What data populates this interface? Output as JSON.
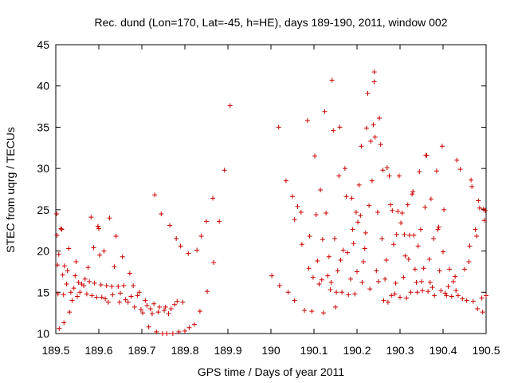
{
  "chart_data": {
    "type": "scatter",
    "title": "Rec. dund (Lon=170, Lat=-45, h=HE), days 189-190, 2011, window 002",
    "xlabel": "GPS time / Days of year 2011",
    "ylabel": "STEC from uqrg / TECUs",
    "xlim": [
      189.5,
      190.5
    ],
    "ylim": [
      10,
      45
    ],
    "xticks": [
      189.5,
      189.6,
      189.7,
      189.8,
      189.9,
      190,
      190.1,
      190.2,
      190.3,
      190.4,
      190.5
    ],
    "xtick_labels": [
      "189.5",
      "189.6",
      "189.7",
      "189.8",
      "189.9",
      "190",
      "190.1",
      "190.2",
      "190.3",
      "190.4",
      "190.5"
    ],
    "yticks": [
      10,
      15,
      20,
      25,
      30,
      35,
      40,
      45
    ],
    "ytick_labels": [
      "10",
      "15",
      "20",
      "25",
      "30",
      "35",
      "40",
      "45"
    ],
    "grid": false,
    "marker": "+",
    "color": "#cc0000",
    "series": [
      {
        "name": "STEC",
        "points": [
          [
            189.502,
            24.5
          ],
          [
            189.503,
            21.9
          ],
          [
            189.504,
            18.3
          ],
          [
            189.505,
            14.8
          ],
          [
            189.507,
            19.6
          ],
          [
            189.508,
            10.6
          ],
          [
            189.512,
            22.7
          ],
          [
            189.514,
            22.6
          ],
          [
            189.516,
            17.1
          ],
          [
            189.518,
            14.7
          ],
          [
            189.519,
            11.3
          ],
          [
            189.52,
            18.2
          ],
          [
            189.525,
            16.0
          ],
          [
            189.527,
            17.6
          ],
          [
            189.53,
            20.3
          ],
          [
            189.532,
            12.6
          ],
          [
            189.535,
            15.0
          ],
          [
            189.538,
            14.0
          ],
          [
            189.542,
            15.5
          ],
          [
            189.545,
            17.0
          ],
          [
            189.547,
            18.7
          ],
          [
            189.55,
            14.5
          ],
          [
            189.553,
            16.2
          ],
          [
            189.556,
            15.0
          ],
          [
            189.56,
            16.0
          ],
          [
            189.565,
            15.8
          ],
          [
            189.568,
            16.6
          ],
          [
            189.572,
            14.8
          ],
          [
            189.575,
            18.0
          ],
          [
            189.578,
            16.3
          ],
          [
            189.582,
            24.1
          ],
          [
            189.584,
            14.6
          ],
          [
            189.588,
            20.4
          ],
          [
            189.59,
            16.1
          ],
          [
            189.595,
            14.4
          ],
          [
            189.598,
            23.0
          ],
          [
            189.6,
            22.7
          ],
          [
            189.602,
            19.5
          ],
          [
            189.605,
            15.9
          ],
          [
            189.607,
            14.4
          ],
          [
            189.612,
            20.0
          ],
          [
            189.615,
            14.2
          ],
          [
            189.618,
            15.8
          ],
          [
            189.622,
            13.8
          ],
          [
            189.625,
            24.0
          ],
          [
            189.63,
            15.7
          ],
          [
            189.632,
            14.7
          ],
          [
            189.636,
            18.1
          ],
          [
            189.64,
            21.8
          ],
          [
            189.645,
            15.7
          ],
          [
            189.648,
            13.8
          ],
          [
            189.65,
            14.9
          ],
          [
            189.655,
            19.3
          ],
          [
            189.658,
            15.8
          ],
          [
            189.662,
            14.1
          ],
          [
            189.668,
            13.8
          ],
          [
            189.672,
            17.3
          ],
          [
            189.675,
            14.5
          ],
          [
            189.68,
            15.8
          ],
          [
            189.683,
            13.2
          ],
          [
            189.69,
            14.6
          ],
          [
            189.694,
            15.0
          ],
          [
            189.698,
            12.9
          ],
          [
            189.702,
            12.5
          ],
          [
            189.708,
            14.0
          ],
          [
            189.712,
            13.4
          ],
          [
            189.716,
            10.8
          ],
          [
            189.72,
            13.0
          ],
          [
            189.724,
            12.4
          ],
          [
            189.728,
            13.6
          ],
          [
            189.73,
            26.8
          ],
          [
            189.734,
            10.2
          ],
          [
            189.738,
            12.6
          ],
          [
            189.741,
            13.2
          ],
          [
            189.745,
            24.5
          ],
          [
            189.748,
            10.0
          ],
          [
            189.752,
            12.8
          ],
          [
            189.755,
            13.2
          ],
          [
            189.758,
            10.0
          ],
          [
            189.762,
            12.4
          ],
          [
            189.765,
            23.1
          ],
          [
            189.768,
            13.0
          ],
          [
            189.772,
            10.0
          ],
          [
            189.776,
            13.5
          ],
          [
            189.78,
            21.5
          ],
          [
            189.782,
            13.9
          ],
          [
            189.786,
            10.2
          ],
          [
            189.79,
            20.6
          ],
          [
            189.795,
            13.8
          ],
          [
            189.8,
            10.3
          ],
          [
            189.808,
            19.7
          ],
          [
            189.81,
            10.7
          ],
          [
            189.822,
            11.1
          ],
          [
            189.828,
            20.1
          ],
          [
            189.835,
            12.7
          ],
          [
            189.838,
            21.8
          ],
          [
            189.85,
            23.6
          ],
          [
            189.852,
            15.1
          ],
          [
            189.865,
            26.4
          ],
          [
            189.867,
            18.6
          ],
          [
            189.88,
            23.6
          ],
          [
            189.892,
            29.8
          ],
          [
            189.905,
            37.6
          ],
          [
            190.002,
            17.0
          ],
          [
            190.018,
            35.0
          ],
          [
            190.02,
            15.8
          ],
          [
            190.035,
            28.5
          ],
          [
            190.04,
            15.0
          ],
          [
            190.05,
            26.6
          ],
          [
            190.055,
            14.0
          ],
          [
            190.055,
            23.8
          ],
          [
            190.062,
            25.4
          ],
          [
            190.07,
            24.7
          ],
          [
            190.072,
            20.8
          ],
          [
            190.078,
            12.8
          ],
          [
            190.085,
            35.8
          ],
          [
            190.088,
            17.9
          ],
          [
            190.09,
            21.8
          ],
          [
            190.095,
            12.7
          ],
          [
            190.098,
            16.8
          ],
          [
            190.102,
            31.5
          ],
          [
            190.105,
            24.4
          ],
          [
            190.108,
            18.8
          ],
          [
            190.112,
            16.0
          ],
          [
            190.115,
            27.4
          ],
          [
            190.118,
            16.5
          ],
          [
            190.12,
            21.4
          ],
          [
            190.122,
            12.5
          ],
          [
            190.125,
            36.9
          ],
          [
            190.128,
            24.6
          ],
          [
            190.132,
            17.0
          ],
          [
            190.135,
            19.3
          ],
          [
            190.138,
            15.3
          ],
          [
            190.14,
            16.2
          ],
          [
            190.142,
            40.7
          ],
          [
            190.145,
            34.6
          ],
          [
            190.148,
            21.5
          ],
          [
            190.15,
            13.2
          ],
          [
            190.152,
            15.0
          ],
          [
            190.155,
            17.6
          ],
          [
            190.158,
            29.1
          ],
          [
            190.16,
            35.0
          ],
          [
            190.162,
            18.9
          ],
          [
            190.165,
            15.0
          ],
          [
            190.168,
            20.1
          ],
          [
            190.172,
            30.0
          ],
          [
            190.175,
            26.6
          ],
          [
            190.178,
            19.8
          ],
          [
            190.18,
            14.7
          ],
          [
            190.185,
            16.6
          ],
          [
            190.188,
            26.4
          ],
          [
            190.19,
            22.6
          ],
          [
            190.192,
            20.9
          ],
          [
            190.195,
            14.8
          ],
          [
            190.198,
            24.7
          ],
          [
            190.2,
            17.5
          ],
          [
            190.202,
            23.5
          ],
          [
            190.205,
            28.0
          ],
          [
            190.208,
            24.3
          ],
          [
            190.21,
            32.7
          ],
          [
            190.212,
            16.2
          ],
          [
            190.215,
            18.7
          ],
          [
            190.218,
            20.3
          ],
          [
            190.22,
            22.2
          ],
          [
            190.222,
            34.9
          ],
          [
            190.225,
            39.1
          ],
          [
            190.228,
            25.5
          ],
          [
            190.23,
            15.4
          ],
          [
            190.232,
            33.3
          ],
          [
            190.235,
            28.5
          ],
          [
            190.238,
            35.3
          ],
          [
            190.24,
            41.7
          ],
          [
            190.24,
            40.5
          ],
          [
            190.242,
            33.8
          ],
          [
            190.245,
            17.6
          ],
          [
            190.248,
            24.7
          ],
          [
            190.25,
            16.3
          ],
          [
            190.252,
            36.1
          ],
          [
            190.255,
            32.9
          ],
          [
            190.258,
            21.5
          ],
          [
            190.26,
            29.8
          ],
          [
            190.262,
            14.0
          ],
          [
            190.265,
            16.6
          ],
          [
            190.268,
            18.9
          ],
          [
            190.27,
            30.1
          ],
          [
            190.272,
            13.8
          ],
          [
            190.275,
            29.1
          ],
          [
            190.278,
            25.6
          ],
          [
            190.28,
            14.6
          ],
          [
            190.282,
            24.9
          ],
          [
            190.285,
            20.8
          ],
          [
            190.288,
            14.8
          ],
          [
            190.29,
            16.1
          ],
          [
            190.292,
            22.0
          ],
          [
            190.295,
            24.8
          ],
          [
            190.298,
            29.1
          ],
          [
            190.3,
            14.4
          ],
          [
            190.302,
            23.4
          ],
          [
            190.305,
            24.6
          ],
          [
            190.308,
            16.8
          ],
          [
            190.31,
            22.0
          ],
          [
            190.312,
            19.4
          ],
          [
            190.315,
            14.3
          ],
          [
            190.318,
            25.6
          ],
          [
            190.32,
            19.0
          ],
          [
            190.322,
            21.9
          ],
          [
            190.325,
            15.0
          ],
          [
            190.328,
            26.9
          ],
          [
            190.33,
            27.2
          ],
          [
            190.332,
            21.9
          ],
          [
            190.335,
            17.8
          ],
          [
            190.338,
            16.2
          ],
          [
            190.34,
            15.0
          ],
          [
            190.342,
            20.6
          ],
          [
            190.345,
            29.6
          ],
          [
            190.348,
            22.6
          ],
          [
            190.35,
            16.3
          ],
          [
            190.352,
            15.2
          ],
          [
            190.355,
            17.9
          ],
          [
            190.358,
            25.3
          ],
          [
            190.36,
            31.6
          ],
          [
            190.362,
            31.6
          ],
          [
            190.365,
            15.1
          ],
          [
            190.368,
            19.0
          ],
          [
            190.37,
            16.2
          ],
          [
            190.372,
            26.3
          ],
          [
            190.375,
            15.6
          ],
          [
            190.378,
            21.5
          ],
          [
            190.38,
            14.6
          ],
          [
            190.385,
            29.7
          ],
          [
            190.388,
            22.6
          ],
          [
            190.39,
            22.9
          ],
          [
            190.392,
            17.6
          ],
          [
            190.395,
            15.2
          ],
          [
            190.398,
            32.7
          ],
          [
            190.4,
            19.9
          ],
          [
            190.402,
            25.0
          ],
          [
            190.405,
            14.9
          ],
          [
            190.408,
            14.6
          ],
          [
            190.412,
            15.7
          ],
          [
            190.415,
            17.8
          ],
          [
            190.42,
            14.5
          ],
          [
            190.424,
            16.3
          ],
          [
            190.428,
            16.9
          ],
          [
            190.43,
            15.2
          ],
          [
            190.432,
            31.0
          ],
          [
            190.435,
            14.6
          ],
          [
            190.44,
            29.9
          ],
          [
            190.445,
            14.2
          ],
          [
            190.45,
            17.8
          ],
          [
            190.455,
            14.0
          ],
          [
            190.46,
            18.7
          ],
          [
            190.462,
            20.6
          ],
          [
            190.465,
            28.6
          ],
          [
            190.467,
            27.8
          ],
          [
            190.47,
            13.9
          ],
          [
            190.475,
            22.6
          ],
          [
            190.478,
            21.8
          ],
          [
            190.48,
            13.0
          ],
          [
            190.482,
            26.1
          ],
          [
            190.485,
            25.2
          ],
          [
            190.49,
            14.3
          ],
          [
            190.492,
            12.6
          ],
          [
            190.494,
            25.1
          ],
          [
            190.496,
            23.7
          ],
          [
            190.498,
            24.9
          ],
          [
            190.5,
            14.6
          ]
        ]
      }
    ]
  }
}
